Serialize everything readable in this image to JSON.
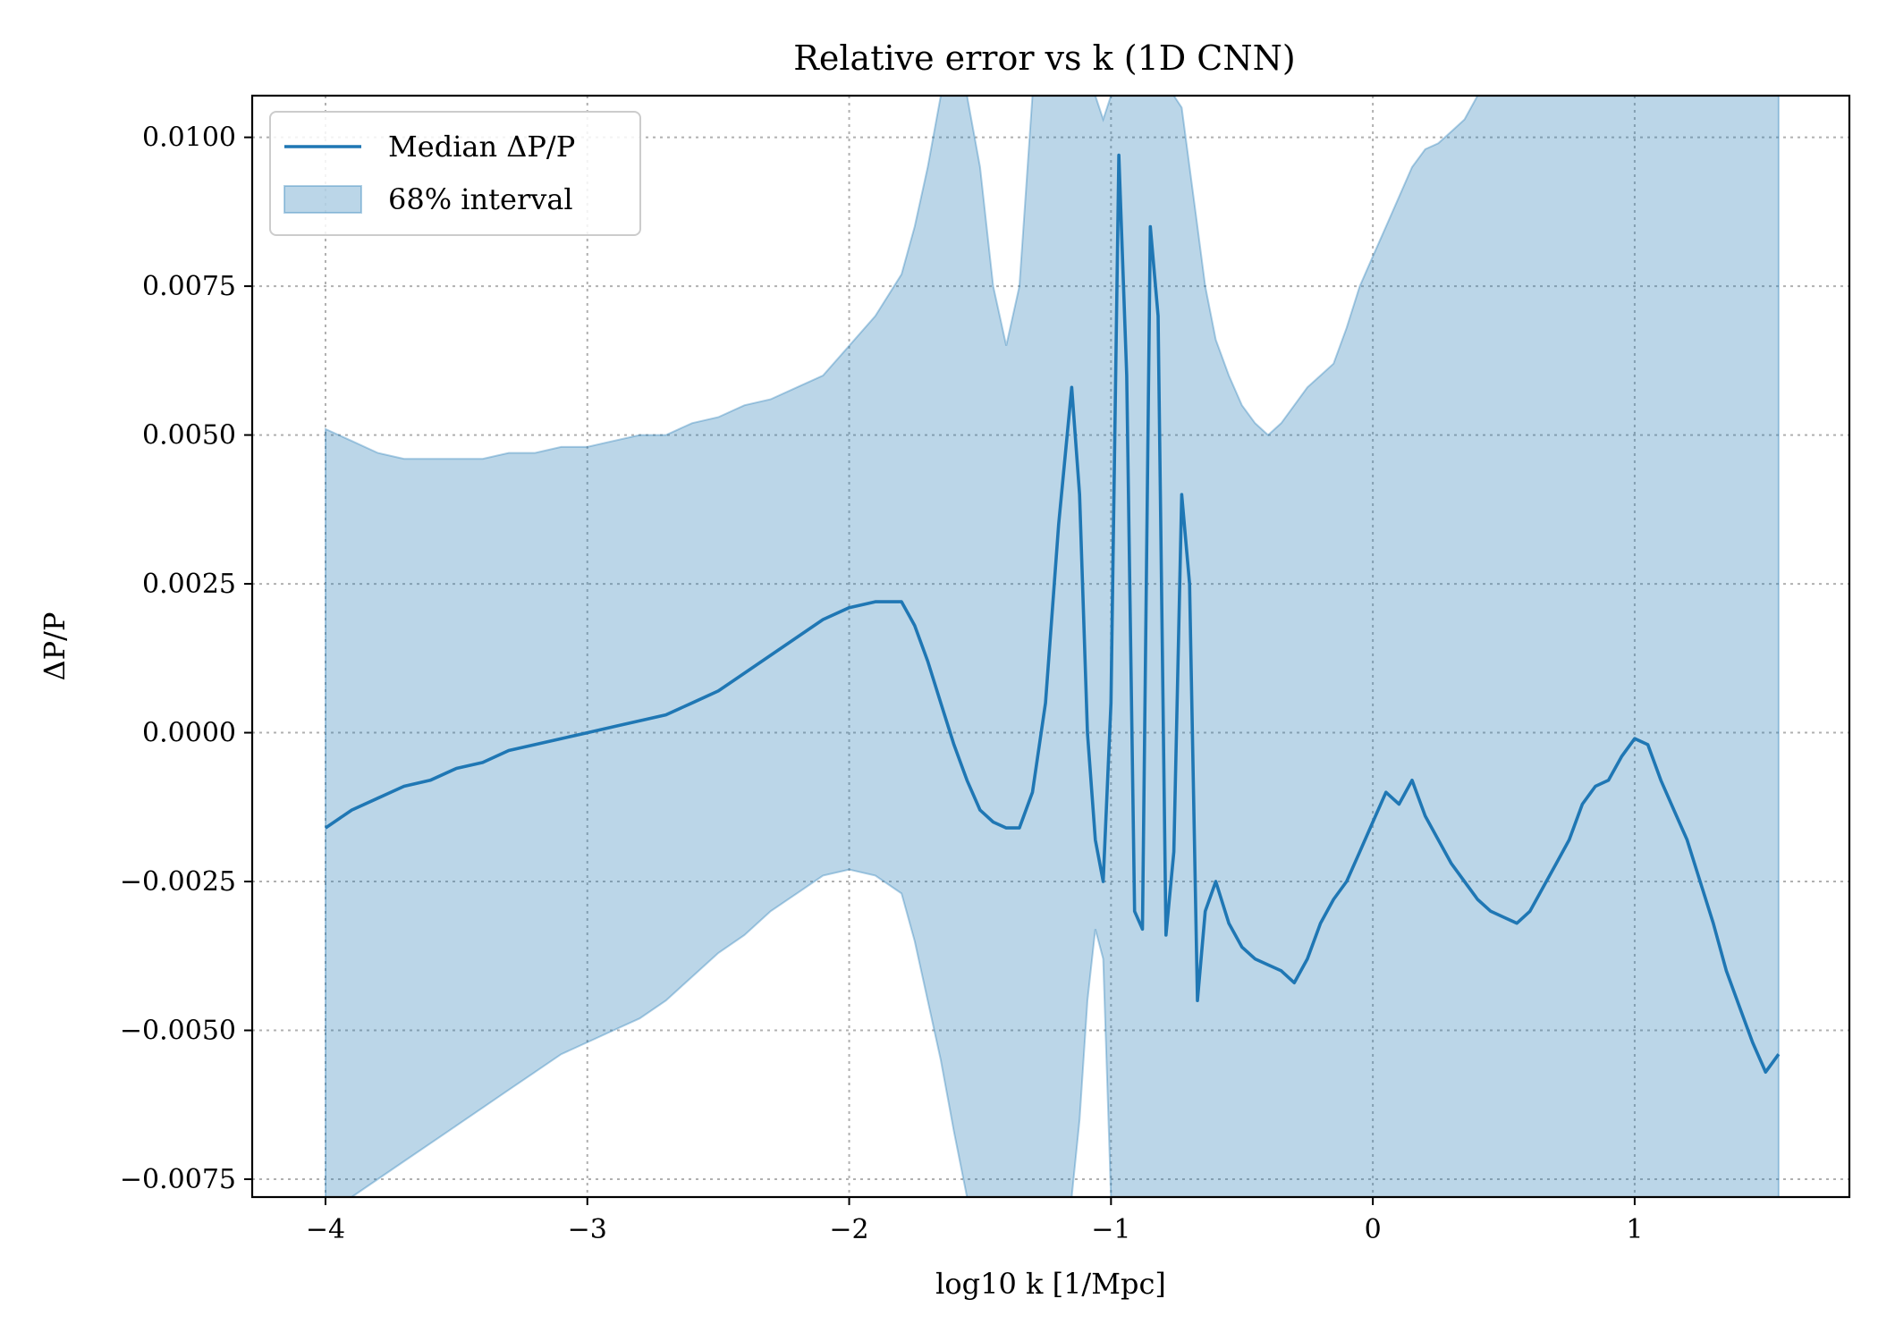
{
  "chart_data": {
    "type": "line",
    "title": "Relative error vs k (1D CNN)",
    "xlabel": "log10 k [1/Mpc]",
    "ylabel": "ΔP/P",
    "xlim": [
      -4.28,
      1.82
    ],
    "ylim": [
      -0.0078,
      0.0107
    ],
    "xticks": [
      -4,
      -3,
      -2,
      -1,
      0,
      1
    ],
    "xtick_labels": [
      "−4",
      "−3",
      "−2",
      "−1",
      "0",
      "1"
    ],
    "yticks": [
      -0.0075,
      -0.005,
      -0.0025,
      0.0,
      0.0025,
      0.005,
      0.0075,
      0.01
    ],
    "ytick_labels": [
      "−0.0075",
      "−0.0050",
      "−0.0025",
      "0.0000",
      "0.0025",
      "0.0050",
      "0.0075",
      "0.0100"
    ],
    "grid": true,
    "legend_position": "upper-left",
    "series": [
      {
        "name": "Median ΔP/P",
        "kind": "line",
        "color": "#1f77b4",
        "x": [
          -4.0,
          -3.9,
          -3.8,
          -3.7,
          -3.6,
          -3.5,
          -3.4,
          -3.3,
          -3.2,
          -3.1,
          -3.0,
          -2.9,
          -2.8,
          -2.7,
          -2.6,
          -2.5,
          -2.4,
          -2.3,
          -2.2,
          -2.1,
          -2.0,
          -1.9,
          -1.8,
          -1.75,
          -1.7,
          -1.65,
          -1.6,
          -1.55,
          -1.5,
          -1.45,
          -1.4,
          -1.35,
          -1.3,
          -1.25,
          -1.2,
          -1.15,
          -1.12,
          -1.09,
          -1.06,
          -1.03,
          -1.0,
          -0.97,
          -0.94,
          -0.91,
          -0.88,
          -0.85,
          -0.82,
          -0.79,
          -0.76,
          -0.73,
          -0.7,
          -0.67,
          -0.64,
          -0.6,
          -0.55,
          -0.5,
          -0.45,
          -0.4,
          -0.35,
          -0.3,
          -0.25,
          -0.2,
          -0.15,
          -0.1,
          -0.05,
          0.0,
          0.05,
          0.1,
          0.15,
          0.2,
          0.25,
          0.3,
          0.35,
          0.4,
          0.45,
          0.5,
          0.55,
          0.6,
          0.65,
          0.7,
          0.75,
          0.8,
          0.85,
          0.9,
          0.95,
          1.0,
          1.05,
          1.1,
          1.15,
          1.2,
          1.25,
          1.3,
          1.35,
          1.4,
          1.45,
          1.5,
          1.55
        ],
        "y": [
          -0.0016,
          -0.0013,
          -0.0011,
          -0.0009,
          -0.0008,
          -0.0006,
          -0.0005,
          -0.0003,
          -0.0002,
          -0.0001,
          0.0,
          0.0001,
          0.0002,
          0.0003,
          0.0005,
          0.0007,
          0.001,
          0.0013,
          0.0016,
          0.0019,
          0.0021,
          0.0022,
          0.0022,
          0.0018,
          0.0012,
          0.0005,
          -0.0002,
          -0.0008,
          -0.0013,
          -0.0015,
          -0.0016,
          -0.0016,
          -0.001,
          0.0005,
          0.0035,
          0.0058,
          0.004,
          0.0,
          -0.0018,
          -0.0025,
          0.0005,
          0.0097,
          0.006,
          -0.003,
          -0.0033,
          0.0085,
          0.007,
          -0.0034,
          -0.002,
          0.004,
          0.0025,
          -0.0045,
          -0.003,
          -0.0025,
          -0.0032,
          -0.0036,
          -0.0038,
          -0.0039,
          -0.004,
          -0.0042,
          -0.0038,
          -0.0032,
          -0.0028,
          -0.0025,
          -0.002,
          -0.0015,
          -0.001,
          -0.0012,
          -0.0008,
          -0.0014,
          -0.0018,
          -0.0022,
          -0.0025,
          -0.0028,
          -0.003,
          -0.0031,
          -0.0032,
          -0.003,
          -0.0026,
          -0.0022,
          -0.0018,
          -0.0012,
          -0.0009,
          -0.0008,
          -0.0004,
          -0.0001,
          -0.0002,
          -0.0008,
          -0.0013,
          -0.0018,
          -0.0025,
          -0.0032,
          -0.004,
          -0.0046,
          -0.0052,
          -0.0057,
          -0.0054
        ]
      },
      {
        "name": "68% interval",
        "kind": "band",
        "color": "#1f77b4",
        "x": [
          -4.0,
          -3.9,
          -3.8,
          -3.7,
          -3.6,
          -3.5,
          -3.4,
          -3.3,
          -3.2,
          -3.1,
          -3.0,
          -2.9,
          -2.8,
          -2.7,
          -2.6,
          -2.5,
          -2.4,
          -2.3,
          -2.2,
          -2.1,
          -2.0,
          -1.9,
          -1.8,
          -1.75,
          -1.7,
          -1.65,
          -1.6,
          -1.55,
          -1.5,
          -1.45,
          -1.4,
          -1.35,
          -1.3,
          -1.25,
          -1.2,
          -1.15,
          -1.12,
          -1.09,
          -1.06,
          -1.03,
          -1.0,
          -0.97,
          -0.94,
          -0.91,
          -0.88,
          -0.85,
          -0.82,
          -0.79,
          -0.76,
          -0.73,
          -0.7,
          -0.67,
          -0.64,
          -0.6,
          -0.55,
          -0.5,
          -0.45,
          -0.4,
          -0.35,
          -0.3,
          -0.25,
          -0.2,
          -0.15,
          -0.1,
          -0.05,
          0.0,
          0.05,
          0.1,
          0.15,
          0.2,
          0.25,
          0.3,
          0.35,
          0.4,
          0.45,
          0.5,
          0.55,
          0.6,
          0.65,
          0.7,
          0.75,
          0.8,
          0.85,
          0.9,
          0.95,
          1.0,
          1.05,
          1.1,
          1.15,
          1.2,
          1.25,
          1.3,
          1.35,
          1.4,
          1.45,
          1.5,
          1.55
        ],
        "lower": [
          -0.0078,
          -0.0078,
          -0.0075,
          -0.0072,
          -0.0069,
          -0.0066,
          -0.0063,
          -0.006,
          -0.0057,
          -0.0054,
          -0.0052,
          -0.005,
          -0.0048,
          -0.0045,
          -0.0041,
          -0.0037,
          -0.0034,
          -0.003,
          -0.0027,
          -0.0024,
          -0.0023,
          -0.0024,
          -0.0027,
          -0.0035,
          -0.0045,
          -0.0055,
          -0.0067,
          -0.0078,
          -0.0078,
          -0.0078,
          -0.0078,
          -0.0078,
          -0.0078,
          -0.0078,
          -0.0078,
          -0.0078,
          -0.0065,
          -0.0045,
          -0.0033,
          -0.0038,
          -0.0078,
          -0.0078,
          -0.0078,
          -0.0078,
          -0.0078,
          -0.0078,
          -0.0078,
          -0.0078,
          -0.0078,
          -0.0078,
          -0.0078,
          -0.0078,
          -0.0078,
          -0.0078,
          -0.0078,
          -0.0078,
          -0.0078,
          -0.0078,
          -0.0078,
          -0.0078,
          -0.0078,
          -0.0078,
          -0.0078,
          -0.0078,
          -0.0078,
          -0.0078,
          -0.0078,
          -0.0078,
          -0.0078,
          -0.0078,
          -0.0078,
          -0.0078,
          -0.0078,
          -0.0078,
          -0.0078,
          -0.0078,
          -0.0078,
          -0.0078,
          -0.0078,
          -0.0078,
          -0.0078,
          -0.0078,
          -0.0078,
          -0.0078,
          -0.0078,
          -0.0078,
          -0.0078,
          -0.0078,
          -0.0078,
          -0.0078,
          -0.0078,
          -0.0078,
          -0.0078,
          -0.0078,
          -0.0078,
          -0.0078,
          -0.0078
        ],
        "upper": [
          0.0051,
          0.0049,
          0.0047,
          0.0046,
          0.0046,
          0.0046,
          0.0046,
          0.0047,
          0.0047,
          0.0048,
          0.0048,
          0.0049,
          0.005,
          0.005,
          0.0052,
          0.0053,
          0.0055,
          0.0056,
          0.0058,
          0.006,
          0.0065,
          0.007,
          0.0077,
          0.0085,
          0.0095,
          0.0107,
          0.0107,
          0.0107,
          0.0095,
          0.0075,
          0.0065,
          0.0075,
          0.0107,
          0.0107,
          0.0107,
          0.0107,
          0.0107,
          0.0107,
          0.0107,
          0.0103,
          0.0107,
          0.0107,
          0.0107,
          0.0107,
          0.0107,
          0.0107,
          0.0107,
          0.0107,
          0.0107,
          0.0105,
          0.0095,
          0.0085,
          0.0075,
          0.0066,
          0.006,
          0.0055,
          0.0052,
          0.005,
          0.0052,
          0.0055,
          0.0058,
          0.006,
          0.0062,
          0.0068,
          0.0075,
          0.008,
          0.0085,
          0.009,
          0.0095,
          0.0098,
          0.0099,
          0.0101,
          0.0103,
          0.0107,
          0.0107,
          0.0107,
          0.0107,
          0.0107,
          0.0107,
          0.0107,
          0.0107,
          0.0107,
          0.0107,
          0.0107,
          0.0107,
          0.0107,
          0.0107,
          0.0107,
          0.0107,
          0.0107,
          0.0107,
          0.0107,
          0.0107,
          0.0107,
          0.0107,
          0.0107,
          0.0107
        ]
      }
    ]
  }
}
